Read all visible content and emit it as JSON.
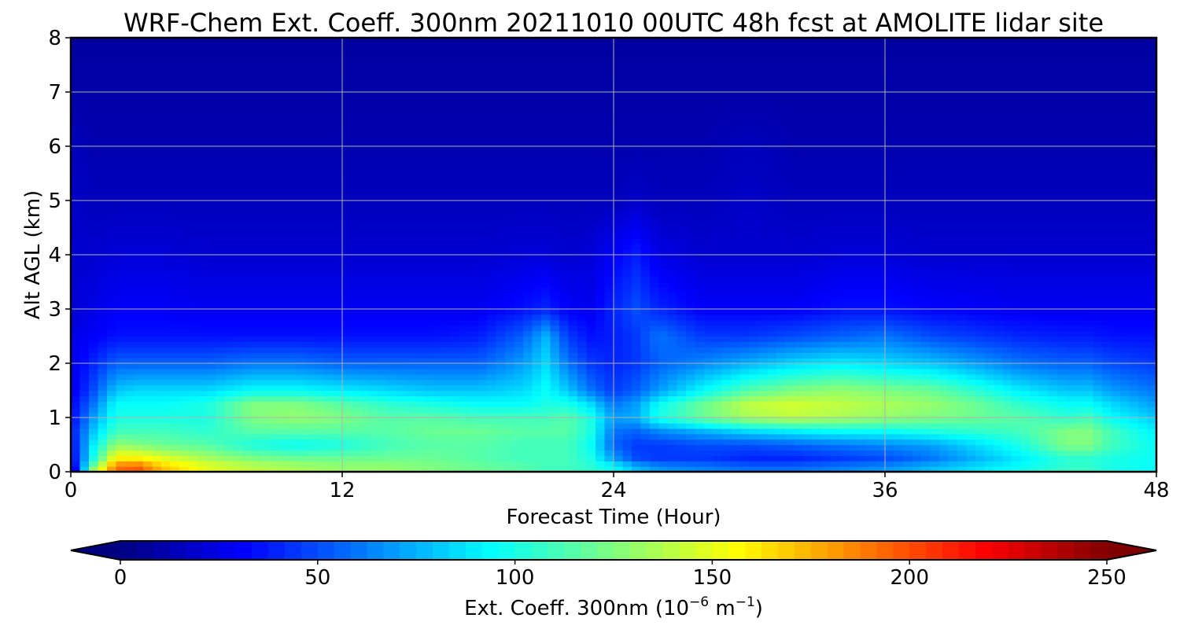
{
  "chart_data": {
    "type": "heatmap",
    "title": "WRF-Chem Ext. Coeff. 300nm  20211010 00UTC 48h fcst at AMOLITE lidar site",
    "xlabel": "Forecast Time (Hour)",
    "ylabel": "Alt AGL (km)",
    "xlim": [
      0,
      48
    ],
    "ylim": [
      0,
      8
    ],
    "x_ticks": [
      0,
      12,
      24,
      36,
      48
    ],
    "y_ticks": [
      0,
      1,
      2,
      3,
      4,
      5,
      6,
      7,
      8
    ],
    "grid": true,
    "colormap": "jet",
    "colorbar": {
      "orientation": "horizontal",
      "position": "bottom",
      "range": [
        0,
        250
      ],
      "ticks": [
        0,
        50,
        100,
        150,
        200,
        250
      ],
      "extend": "both",
      "label_main": "Ext. Coeff. 300nm  (10",
      "label_exp1": "−6",
      "label_mid": " m",
      "label_exp2": "−1",
      "label_end": ")"
    },
    "x_hours": [
      0,
      1,
      2,
      3,
      4,
      6,
      8,
      10,
      12,
      14,
      16,
      18,
      20,
      21,
      22,
      23,
      24,
      25,
      26,
      28,
      30,
      32,
      34,
      36,
      38,
      40,
      42,
      44,
      45,
      46,
      48
    ],
    "y_km": [
      0,
      0.1,
      0.25,
      0.5,
      0.75,
      1.0,
      1.25,
      1.5,
      2.0,
      2.5,
      3.0,
      4.0,
      5.0,
      6.0,
      7.0,
      8.0
    ],
    "values": [
      [
        0,
        15,
        25,
        30,
        35,
        30,
        30,
        25,
        25,
        25,
        20,
        20,
        18,
        15,
        10,
        8
      ],
      [
        140,
        120,
        100,
        90,
        80,
        70,
        60,
        50,
        40,
        30,
        25,
        20,
        15,
        12,
        10,
        8
      ],
      [
        195,
        190,
        160,
        130,
        110,
        100,
        95,
        80,
        55,
        35,
        30,
        22,
        15,
        12,
        10,
        8
      ],
      [
        200,
        195,
        160,
        125,
        110,
        100,
        95,
        85,
        55,
        35,
        30,
        22,
        15,
        12,
        10,
        8
      ],
      [
        175,
        170,
        150,
        120,
        110,
        100,
        95,
        85,
        55,
        35,
        30,
        22,
        15,
        12,
        10,
        8
      ],
      [
        150,
        150,
        135,
        115,
        105,
        100,
        100,
        85,
        55,
        35,
        28,
        20,
        15,
        12,
        10,
        8
      ],
      [
        140,
        140,
        125,
        100,
        115,
        125,
        125,
        95,
        60,
        35,
        28,
        20,
        15,
        12,
        10,
        8
      ],
      [
        135,
        135,
        120,
        95,
        115,
        130,
        125,
        95,
        60,
        35,
        28,
        20,
        15,
        12,
        10,
        8
      ],
      [
        130,
        130,
        120,
        100,
        115,
        125,
        115,
        90,
        55,
        35,
        28,
        20,
        15,
        12,
        10,
        8
      ],
      [
        130,
        130,
        120,
        110,
        115,
        115,
        105,
        85,
        55,
        35,
        28,
        20,
        15,
        12,
        10,
        8
      ],
      [
        125,
        125,
        120,
        115,
        120,
        115,
        100,
        80,
        55,
        35,
        28,
        20,
        15,
        12,
        10,
        8
      ],
      [
        120,
        120,
        115,
        115,
        120,
        110,
        95,
        80,
        55,
        38,
        28,
        20,
        15,
        12,
        10,
        8
      ],
      [
        115,
        115,
        110,
        110,
        115,
        110,
        95,
        85,
        70,
        55,
        35,
        22,
        15,
        12,
        10,
        8
      ],
      [
        110,
        110,
        110,
        110,
        115,
        110,
        100,
        95,
        85,
        75,
        40,
        22,
        15,
        12,
        10,
        8
      ],
      [
        110,
        110,
        110,
        110,
        115,
        115,
        100,
        80,
        60,
        45,
        30,
        20,
        15,
        12,
        10,
        8
      ],
      [
        105,
        105,
        100,
        95,
        100,
        100,
        85,
        60,
        45,
        35,
        28,
        22,
        15,
        12,
        10,
        8
      ],
      [
        95,
        95,
        70,
        55,
        60,
        70,
        60,
        45,
        40,
        38,
        40,
        30,
        15,
        12,
        10,
        8
      ],
      [
        80,
        75,
        50,
        45,
        55,
        75,
        70,
        55,
        45,
        45,
        50,
        38,
        18,
        12,
        10,
        8
      ],
      [
        70,
        65,
        45,
        45,
        65,
        100,
        95,
        70,
        55,
        60,
        40,
        25,
        15,
        12,
        10,
        8
      ],
      [
        65,
        60,
        45,
        50,
        75,
        120,
        120,
        95,
        65,
        45,
        30,
        20,
        15,
        12,
        10,
        8
      ],
      [
        60,
        55,
        40,
        50,
        85,
        135,
        140,
        115,
        75,
        45,
        30,
        20,
        18,
        15,
        10,
        8
      ],
      [
        60,
        55,
        40,
        55,
        90,
        140,
        145,
        125,
        85,
        50,
        30,
        20,
        15,
        12,
        10,
        8
      ],
      [
        65,
        60,
        45,
        60,
        95,
        135,
        140,
        130,
        90,
        55,
        35,
        22,
        15,
        12,
        10,
        8
      ],
      [
        70,
        65,
        50,
        65,
        95,
        130,
        135,
        125,
        85,
        60,
        35,
        22,
        15,
        12,
        10,
        8
      ],
      [
        80,
        75,
        60,
        70,
        100,
        125,
        130,
        120,
        80,
        50,
        32,
        20,
        15,
        12,
        10,
        8
      ],
      [
        90,
        85,
        75,
        85,
        105,
        120,
        120,
        105,
        70,
        45,
        30,
        20,
        15,
        12,
        10,
        8
      ],
      [
        100,
        95,
        90,
        100,
        110,
        115,
        105,
        90,
        60,
        40,
        28,
        20,
        15,
        12,
        10,
        8
      ],
      [
        110,
        105,
        105,
        125,
        125,
        105,
        95,
        80,
        55,
        38,
        28,
        20,
        15,
        12,
        10,
        8
      ],
      [
        110,
        105,
        105,
        125,
        125,
        110,
        95,
        80,
        55,
        38,
        28,
        20,
        15,
        12,
        10,
        8
      ],
      [
        100,
        100,
        100,
        110,
        110,
        95,
        85,
        70,
        50,
        35,
        28,
        20,
        15,
        12,
        10,
        8
      ],
      [
        95,
        95,
        95,
        95,
        90,
        80,
        70,
        60,
        45,
        35,
        28,
        20,
        15,
        12,
        10,
        8
      ]
    ]
  }
}
